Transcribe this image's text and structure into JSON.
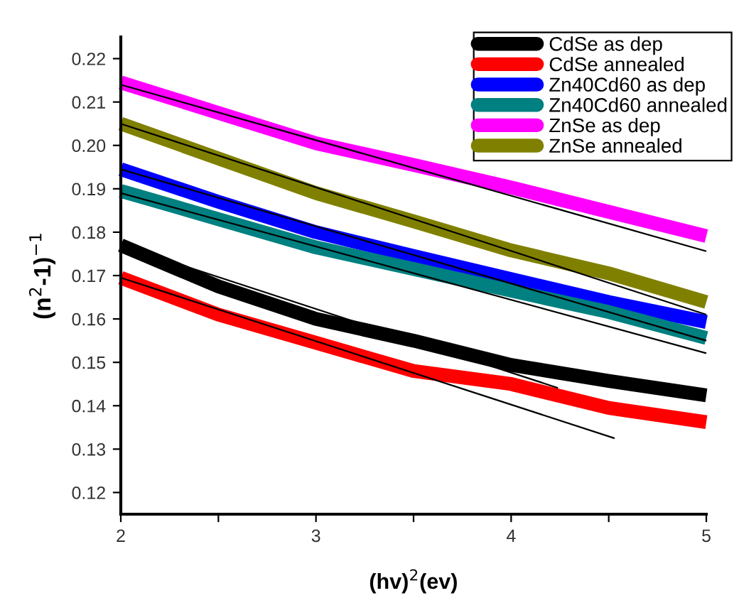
{
  "chart_data": {
    "type": "line",
    "xlabel": "(hv)$^{2}$(ev)",
    "ylabel": "(n$^{2}$-1)$^{−1}$",
    "x": [
      2,
      2.5,
      3,
      3.5,
      4,
      4.5,
      5
    ],
    "series": [
      {
        "name": "CdSe as dep",
        "color": "#000000",
        "values": [
          0.177,
          0.1675,
          0.16,
          0.155,
          0.1494,
          0.1457,
          0.1424
        ]
      },
      {
        "name": "CdSe annealed",
        "color": "#ff0000",
        "values": [
          0.1695,
          0.161,
          0.1545,
          0.148,
          0.145,
          0.1395,
          0.1362
        ]
      },
      {
        "name": "Zn40Cd60 as dep",
        "color": "#0000ff",
        "values": [
          0.1945,
          0.187,
          0.18,
          0.1745,
          0.1692,
          0.1639,
          0.1593
        ]
      },
      {
        "name": "Zn40Cd60 annealed",
        "color": "#008080",
        "values": [
          0.1895,
          0.183,
          0.1765,
          0.1715,
          0.1665,
          0.1616,
          0.1556
        ]
      },
      {
        "name": "ZnSe as dep",
        "color": "#ff00ff",
        "values": [
          0.2145,
          0.2075,
          0.2005,
          0.1955,
          0.1903,
          0.1847,
          0.1791
        ]
      },
      {
        "name": "ZnSe annealed",
        "color": "#808000",
        "values": [
          0.205,
          0.197,
          0.189,
          0.1825,
          0.1758,
          0.1705,
          0.1639
        ]
      },
      {
        "type": "line",
        "color": "#000000",
        "x": [
          2,
          4.24
        ],
        "values": [
          0.177,
          0.1441
        ]
      },
      {
        "type": "line",
        "color": "#000000",
        "x": [
          2,
          4.53
        ],
        "values": [
          0.1695,
          0.1325
        ]
      },
      {
        "type": "line",
        "color": "#000000",
        "x": [
          2,
          5
        ],
        "values": [
          0.1945,
          0.155
        ]
      },
      {
        "type": "line",
        "color": "#000000",
        "x": [
          2,
          5
        ],
        "values": [
          0.189,
          0.1521
        ]
      },
      {
        "type": "line",
        "color": "#000000",
        "x": [
          2,
          5
        ],
        "values": [
          0.214,
          0.1756
        ]
      },
      {
        "type": "line",
        "color": "#000000",
        "x": [
          2,
          5
        ],
        "values": [
          0.205,
          0.161
        ]
      }
    ],
    "xlim": [
      2,
      5
    ],
    "ylim": [
      0.115,
      0.225
    ],
    "xticks": [
      2,
      {
        "value": 2.5,
        "label": null
      },
      3,
      {
        "value": 3.5,
        "label": null
      },
      4,
      {
        "value": 4.5,
        "label": null
      },
      5
    ],
    "yticks": [
      0.12,
      0.13,
      0.14,
      0.15,
      0.16,
      0.17,
      0.18,
      0.19,
      {
        "value": 0.2,
        "label": "0.20"
      },
      0.21,
      0.22
    ],
    "grid": false,
    "legend": "top right",
    "marker": "none",
    "line_style": "solid"
  }
}
